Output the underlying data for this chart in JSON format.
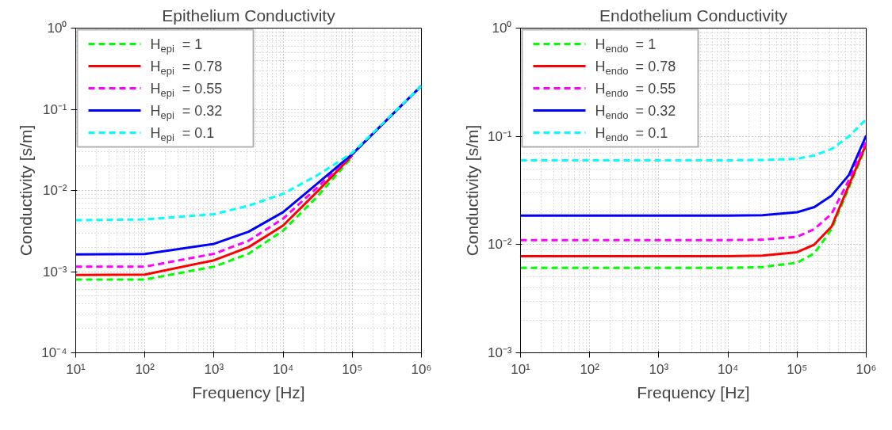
{
  "chart_data": [
    {
      "type": "line",
      "title": "Epithelium Conductivity",
      "xlabel": "Frequency [Hz]",
      "ylabel": "Conductivity [s/m]",
      "log": "xy",
      "grid": true,
      "legend": "top left",
      "xlim": [
        10,
        1000000
      ],
      "ylim": [
        0.0001,
        1
      ],
      "xticks": [
        {
          "value": 10,
          "label": "10¹"
        },
        {
          "value": 100,
          "label": "10²"
        },
        {
          "value": 1000,
          "label": "10³"
        },
        {
          "value": 10000,
          "label": "10⁴"
        },
        {
          "value": 100000,
          "label": "10⁵"
        },
        {
          "value": 1000000,
          "label": "10⁶"
        }
      ],
      "yticks": [
        {
          "value": 0.0001,
          "label": "10⁻⁴"
        },
        {
          "value": 0.001,
          "label": "10⁻³"
        },
        {
          "value": 0.01,
          "label": "10⁻²"
        },
        {
          "value": 0.1,
          "label": "10⁻¹"
        },
        {
          "value": 1,
          "label": "10⁰"
        }
      ],
      "x": [
        10,
        100,
        1000,
        3162,
        10000,
        31623,
        100000,
        316228,
        1000000
      ],
      "series": [
        {
          "name": "H$_{epi}$ = 1",
          "color": "#00ff00",
          "line_style": "dashed",
          "values": [
            0.0008,
            0.0008,
            0.00115,
            0.00166,
            0.0032,
            0.0085,
            0.026,
            null,
            null
          ]
        },
        {
          "name": "H$_{epi}$ = 0.78",
          "color": "#ff0000",
          "line_style": "solid",
          "values": [
            0.00091,
            0.00092,
            0.00138,
            0.002,
            0.0037,
            0.0098,
            0.027,
            null,
            null
          ]
        },
        {
          "name": "H$_{epi}$ = 0.55",
          "color": "#ff00ff",
          "line_style": "dashed",
          "values": [
            0.00115,
            0.00115,
            0.00166,
            0.0024,
            0.0045,
            0.011,
            0.028,
            0.074,
            0.195
          ]
        },
        {
          "name": "H$_{epi}$ = 0.32",
          "color": "#0000ff",
          "line_style": "solid",
          "values": [
            0.00163,
            0.00165,
            0.0022,
            0.0031,
            0.0054,
            0.0123,
            0.028,
            0.074,
            0.195
          ]
        },
        {
          "name": "H$_{epi}$ = 0.1",
          "color": "#00ffff",
          "line_style": "dashed",
          "values": [
            0.0043,
            0.0044,
            0.0051,
            0.0065,
            0.0091,
            0.0155,
            0.029,
            0.075,
            0.195
          ]
        }
      ]
    },
    {
      "type": "line",
      "title": "Endothelium Conductivity",
      "xlabel": "Frequency [Hz]",
      "ylabel": "Conductivity [s/m]",
      "log": "xy",
      "grid": true,
      "legend": "top left",
      "xlim": [
        10,
        1000000
      ],
      "ylim": [
        0.001,
        1
      ],
      "xticks": [
        {
          "value": 10,
          "label": "10¹"
        },
        {
          "value": 100,
          "label": "10²"
        },
        {
          "value": 1000,
          "label": "10³"
        },
        {
          "value": 10000,
          "label": "10⁴"
        },
        {
          "value": 100000,
          "label": "10⁵"
        },
        {
          "value": 1000000,
          "label": "10⁶"
        }
      ],
      "yticks": [
        {
          "value": 0.001,
          "label": "10⁻³"
        },
        {
          "value": 0.01,
          "label": "10⁻²"
        },
        {
          "value": 0.1,
          "label": "10⁻¹"
        },
        {
          "value": 1,
          "label": "10⁰"
        }
      ],
      "x": [
        10,
        10000,
        31623,
        100000,
        177828,
        316228,
        562341,
        1000000
      ],
      "series": [
        {
          "name": "H$_{endo}$ = 1",
          "color": "#00ff00",
          "line_style": "dashed",
          "values": [
            0.0061,
            0.0061,
            0.0062,
            0.0068,
            0.0083,
            0.0139,
            0.0335,
            0.081
          ]
        },
        {
          "name": "H$_{endo}$ = 0.78",
          "color": "#ff0000",
          "line_style": "solid",
          "values": [
            0.0078,
            0.0078,
            0.0079,
            0.0085,
            0.01,
            0.0147,
            0.0354,
            0.085
          ]
        },
        {
          "name": "H$_{endo}$ = 0.55",
          "color": "#ff00ff",
          "line_style": "dashed",
          "values": [
            0.011,
            0.011,
            0.0111,
            0.0118,
            0.0139,
            0.0193,
            0.0395,
            0.09
          ]
        },
        {
          "name": "H$_{endo}$ = 0.32",
          "color": "#0000ff",
          "line_style": "solid",
          "values": [
            0.0185,
            0.0185,
            0.0187,
            0.0199,
            0.0222,
            0.0284,
            0.044,
            0.102
          ]
        },
        {
          "name": "H$_{endo}$ = 0.1",
          "color": "#00ffff",
          "line_style": "dashed",
          "values": [
            0.06,
            0.06,
            0.0605,
            0.062,
            0.0666,
            0.0764,
            0.1,
            0.144
          ]
        }
      ]
    }
  ]
}
